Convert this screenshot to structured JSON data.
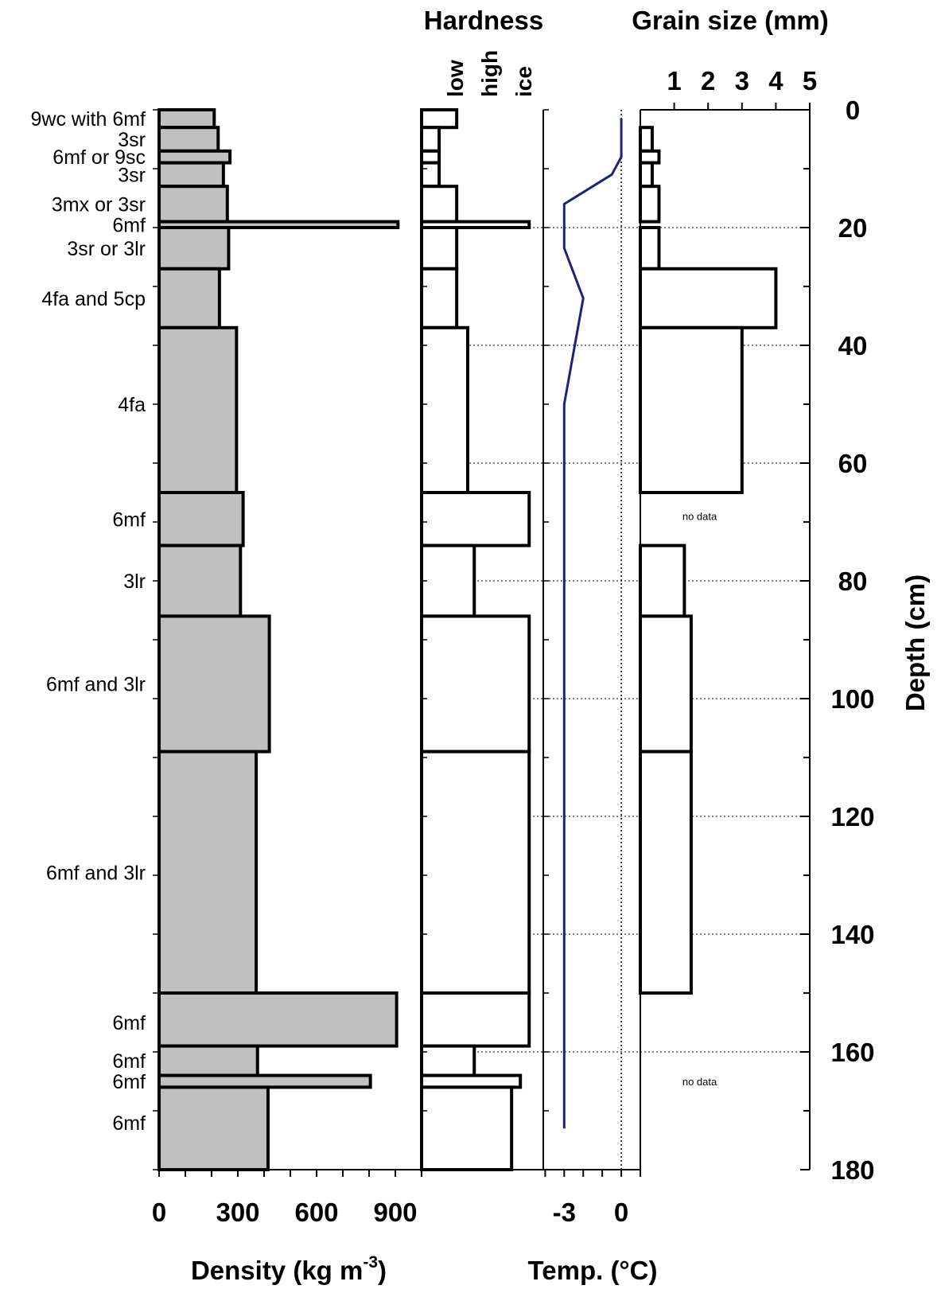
{
  "chart_data": {
    "type": "snow-profile",
    "y_axis": {
      "label": "Depth (cm)",
      "range": [
        0,
        180
      ],
      "ticks": [
        0,
        20,
        40,
        60,
        80,
        100,
        120,
        140,
        160,
        180
      ],
      "inverted": true
    },
    "grid": "dotted horizontal lines every 20 cm",
    "panels": {
      "density": {
        "xlabel_main": "Density (kg m",
        "xlabel_sup": "-3",
        "xlabel_end": ")",
        "xlim": [
          0,
          1000
        ],
        "ticks": [
          0,
          300,
          600,
          900
        ],
        "layers": [
          {
            "top": 0,
            "bottom": 3,
            "value": 210
          },
          {
            "top": 3,
            "bottom": 7,
            "value": 225
          },
          {
            "top": 7,
            "bottom": 9,
            "value": 270
          },
          {
            "top": 9,
            "bottom": 13,
            "value": 245
          },
          {
            "top": 13,
            "bottom": 19,
            "value": 260
          },
          {
            "top": 19,
            "bottom": 20,
            "value": 910
          },
          {
            "top": 20,
            "bottom": 27,
            "value": 265
          },
          {
            "top": 27,
            "bottom": 37,
            "value": 230
          },
          {
            "top": 37,
            "bottom": 65,
            "value": 295
          },
          {
            "top": 65,
            "bottom": 74,
            "value": 320
          },
          {
            "top": 74,
            "bottom": 86,
            "value": 310
          },
          {
            "top": 86,
            "bottom": 109,
            "value": 420
          },
          {
            "top": 109,
            "bottom": 150,
            "value": 370
          },
          {
            "top": 150,
            "bottom": 159,
            "value": 905
          },
          {
            "top": 159,
            "bottom": 164,
            "value": 375
          },
          {
            "top": 164,
            "bottom": 166,
            "value": 805
          },
          {
            "top": 166,
            "bottom": 180,
            "value": 415
          }
        ]
      },
      "hardness": {
        "title": "Hardness",
        "categories": [
          "low",
          "high",
          "ice"
        ],
        "layers": [
          {
            "top": 0,
            "bottom": 3,
            "value": 1.6
          },
          {
            "top": 3,
            "bottom": 7,
            "value": 0.8
          },
          {
            "top": 7,
            "bottom": 9,
            "value": 0.8
          },
          {
            "top": 9,
            "bottom": 13,
            "value": 0.8
          },
          {
            "top": 13,
            "bottom": 19,
            "value": 1.6
          },
          {
            "top": 19,
            "bottom": 20,
            "value": 4.9
          },
          {
            "top": 20,
            "bottom": 27,
            "value": 1.6
          },
          {
            "top": 27,
            "bottom": 37,
            "value": 1.6
          },
          {
            "top": 37,
            "bottom": 65,
            "value": 2.1
          },
          {
            "top": 65,
            "bottom": 74,
            "value": 4.9
          },
          {
            "top": 74,
            "bottom": 86,
            "value": 2.4
          },
          {
            "top": 86,
            "bottom": 109,
            "value": 4.9
          },
          {
            "top": 109,
            "bottom": 150,
            "value": 4.9
          },
          {
            "top": 150,
            "bottom": 159,
            "value": 4.9
          },
          {
            "top": 159,
            "bottom": 164,
            "value": 2.4
          },
          {
            "top": 164,
            "bottom": 166,
            "value": 4.5
          },
          {
            "top": 166,
            "bottom": 180,
            "value": 4.1
          }
        ]
      },
      "temperature": {
        "xlabel": "Temp. (°C)",
        "xlim": [
          -4.1,
          1.0
        ],
        "ticks": [
          -3,
          0
        ],
        "line_color": "#1a237e",
        "points": [
          {
            "t": 0.0,
            "d": 1.5
          },
          {
            "t": 0.0,
            "d": 8
          },
          {
            "t": -0.5,
            "d": 11
          },
          {
            "t": -3.0,
            "d": 16
          },
          {
            "t": -3.0,
            "d": 23.5
          },
          {
            "t": -2.0,
            "d": 32
          },
          {
            "t": -3.0,
            "d": 50
          },
          {
            "t": -3.0,
            "d": 173
          }
        ]
      },
      "grain_size": {
        "title": "Grain size (mm)",
        "xlim": [
          0,
          5
        ],
        "ticks": [
          1,
          2,
          3,
          4,
          5
        ],
        "layers": [
          {
            "top": 3,
            "bottom": 7,
            "value": 0.35
          },
          {
            "top": 7,
            "bottom": 9,
            "value": 0.55
          },
          {
            "top": 9,
            "bottom": 13,
            "value": 0.35
          },
          {
            "top": 13,
            "bottom": 19,
            "value": 0.55
          },
          {
            "top": 20,
            "bottom": 27,
            "value": 0.55
          },
          {
            "top": 27,
            "bottom": 37,
            "value": 4.0
          },
          {
            "top": 37,
            "bottom": 65,
            "value": 3.0
          },
          {
            "top": 74,
            "bottom": 86,
            "value": 1.3
          },
          {
            "top": 86,
            "bottom": 109,
            "value": 1.5
          },
          {
            "top": 109,
            "bottom": 150,
            "value": 1.5
          }
        ],
        "annotations": [
          {
            "text": "no data",
            "depth": 69
          },
          {
            "text": "no data",
            "depth": 165
          }
        ]
      }
    },
    "layer_labels": [
      {
        "text": "9wc with 6mf",
        "depth": 1.5
      },
      {
        "text": "3sr",
        "depth": 5
      },
      {
        "text": "6mf or 9sc",
        "depth": 8
      },
      {
        "text": "3sr",
        "depth": 11
      },
      {
        "text": "3mx or 3sr",
        "depth": 16
      },
      {
        "text": "6mf",
        "depth": 19.5
      },
      {
        "text": "3sr or 3lr",
        "depth": 23.5
      },
      {
        "text": "4fa and 5cp",
        "depth": 32
      },
      {
        "text": "4fa",
        "depth": 50
      },
      {
        "text": "6mf",
        "depth": 69.5
      },
      {
        "text": "3lr",
        "depth": 80
      },
      {
        "text": "6mf and 3lr",
        "depth": 97.5
      },
      {
        "text": "6mf and 3lr",
        "depth": 129.5
      },
      {
        "text": "6mf",
        "depth": 155
      },
      {
        "text": "6mf",
        "depth": 161.5
      },
      {
        "text": "6mf",
        "depth": 165
      },
      {
        "text": "6mf",
        "depth": 172
      }
    ]
  }
}
